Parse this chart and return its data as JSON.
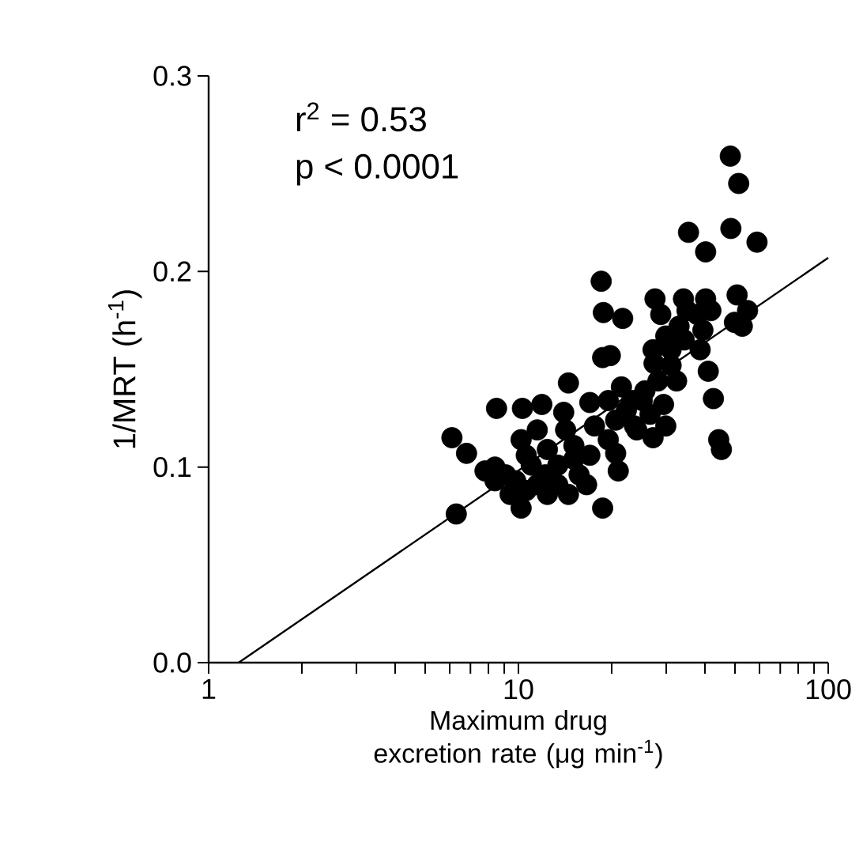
{
  "chart_data": {
    "type": "scatter",
    "xlabel": "Maximum drug excretion rate (μg min$^{-1}$)",
    "ylabel": "1/MRT (h$^{-1}$)",
    "annotations": [
      "r$^{2}$  = 0.53",
      "p < 0.0001"
    ],
    "log": "x",
    "grid": false,
    "marker": "circle",
    "xlim": [
      1,
      100
    ],
    "xticks": [
      1,
      {
        "value": 2,
        "label": null
      },
      {
        "value": 3,
        "label": null
      },
      {
        "value": 4,
        "label": null
      },
      {
        "value": 5,
        "label": null
      },
      {
        "value": 6,
        "label": null
      },
      {
        "value": 7,
        "label": null
      },
      {
        "value": 8,
        "label": null
      },
      {
        "value": 9,
        "label": null
      },
      10,
      {
        "value": 20,
        "label": null
      },
      {
        "value": 30,
        "label": null
      },
      {
        "value": 40,
        "label": null
      },
      {
        "value": 50,
        "label": null
      },
      {
        "value": 60,
        "label": null
      },
      {
        "value": 70,
        "label": null
      },
      {
        "value": 80,
        "label": null
      },
      {
        "value": 90,
        "label": null
      },
      100
    ],
    "ylim": [
      0,
      0.3
    ],
    "yticks": [
      {
        "value": 0,
        "label": "0.0"
      },
      {
        "value": 0.1,
        "label": "0.1"
      },
      {
        "value": 0.2,
        "label": "0.2"
      },
      {
        "value": 0.3,
        "label": "0.3"
      }
    ],
    "series": [
      {
        "color": "#000000",
        "x": [
          48.3,
          51.4,
          35.4,
          48.5,
          58.9,
          40.2,
          18.5,
          18.8,
          21.7,
          27.6,
          34.1,
          40.2,
          50.8,
          54.9,
          49.8,
          28.8,
          33.0,
          37.8,
          29.9,
          27.2,
          31.1,
          38.6,
          41.0,
          42.6,
          44.3,
          45.2,
          18.7,
          19.8,
          14.5,
          11.9,
          10.3,
          8.5,
          6.1,
          6.8,
          6.3,
          7.8,
          8.4,
          9.1,
          10.2,
          11.5,
          10.6,
          12.4,
          14.0,
          14.2,
          15.1,
          17.0,
          17.6,
          21.5,
          23.2,
          25.6,
          29.9,
          27.2,
          24.1,
          20.6,
          20.6,
          21.0,
          17.0,
          15.7,
          16.6,
          14.5,
          12.4,
          11.5,
          10.2,
          9.4,
          9.8,
          11.0,
          13.4,
          15.1,
          18.7,
          28.2,
          29.4,
          26.6,
          22.3,
          12.2,
          8.4,
          39.4,
          34.3,
          31.1,
          52.8,
          41.8,
          23.7,
          25.1,
          19.5,
          19.5,
          13.4,
          10.6,
          35.0,
          27.4,
          32.4
        ],
        "values": [
          0.259,
          0.245,
          0.22,
          0.222,
          0.215,
          0.21,
          0.195,
          0.179,
          0.176,
          0.186,
          0.186,
          0.186,
          0.188,
          0.18,
          0.174,
          0.178,
          0.172,
          0.178,
          0.167,
          0.16,
          0.152,
          0.16,
          0.149,
          0.135,
          0.114,
          0.109,
          0.156,
          0.157,
          0.143,
          0.132,
          0.13,
          0.13,
          0.115,
          0.107,
          0.076,
          0.098,
          0.1,
          0.096,
          0.114,
          0.119,
          0.106,
          0.109,
          0.128,
          0.119,
          0.111,
          0.133,
          0.121,
          0.141,
          0.134,
          0.139,
          0.121,
          0.115,
          0.119,
          0.124,
          0.107,
          0.098,
          0.106,
          0.096,
          0.091,
          0.086,
          0.086,
          0.091,
          0.079,
          0.086,
          0.093,
          0.101,
          0.101,
          0.104,
          0.079,
          0.144,
          0.132,
          0.127,
          0.129,
          0.096,
          0.093,
          0.17,
          0.165,
          0.16,
          0.172,
          0.18,
          0.121,
          0.134,
          0.134,
          0.114,
          0.091,
          0.088,
          0.18,
          0.153,
          0.144
        ]
      },
      {
        "type": "line",
        "color": "#000000",
        "marker": "none",
        "x": [
          1.25,
          100
        ],
        "values": [
          0,
          0.207
        ]
      }
    ]
  }
}
